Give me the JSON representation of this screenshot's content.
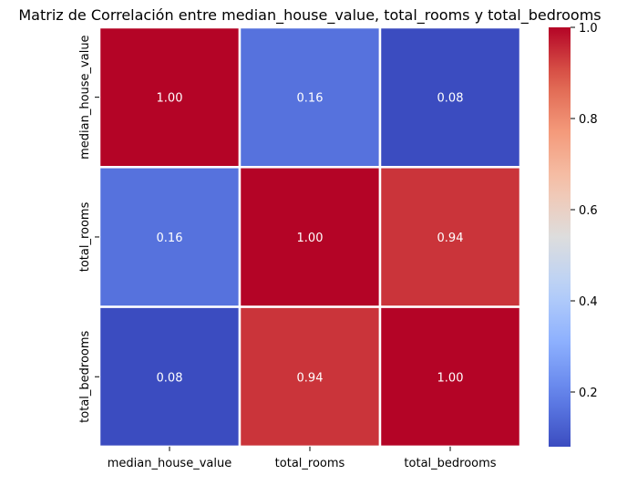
{
  "chart_data": {
    "type": "heatmap",
    "title": "Matriz de Correlación entre median_house_value, total_rooms y total_bedrooms",
    "x_labels": [
      "median_house_value",
      "total_rooms",
      "total_bedrooms"
    ],
    "y_labels": [
      "median_house_value",
      "total_rooms",
      "total_bedrooms"
    ],
    "values": [
      [
        1.0,
        0.16,
        0.08
      ],
      [
        0.16,
        1.0,
        0.94
      ],
      [
        0.08,
        0.94,
        1.0
      ]
    ],
    "annotations": [
      [
        "1.00",
        "0.16",
        "0.08"
      ],
      [
        "0.16",
        "1.00",
        "0.94"
      ],
      [
        "0.08",
        "0.94",
        "1.00"
      ]
    ],
    "colormap": "coolwarm",
    "colorbar": {
      "range": [
        0.08,
        1.0
      ],
      "ticks": [
        0.2,
        0.4,
        0.6,
        0.8,
        1.0
      ],
      "tick_labels": [
        "0.2",
        "0.4",
        "0.6",
        "0.8",
        "1.0"
      ]
    },
    "annotation_color": "#ffffff",
    "cell_border_color": "#ffffff"
  }
}
